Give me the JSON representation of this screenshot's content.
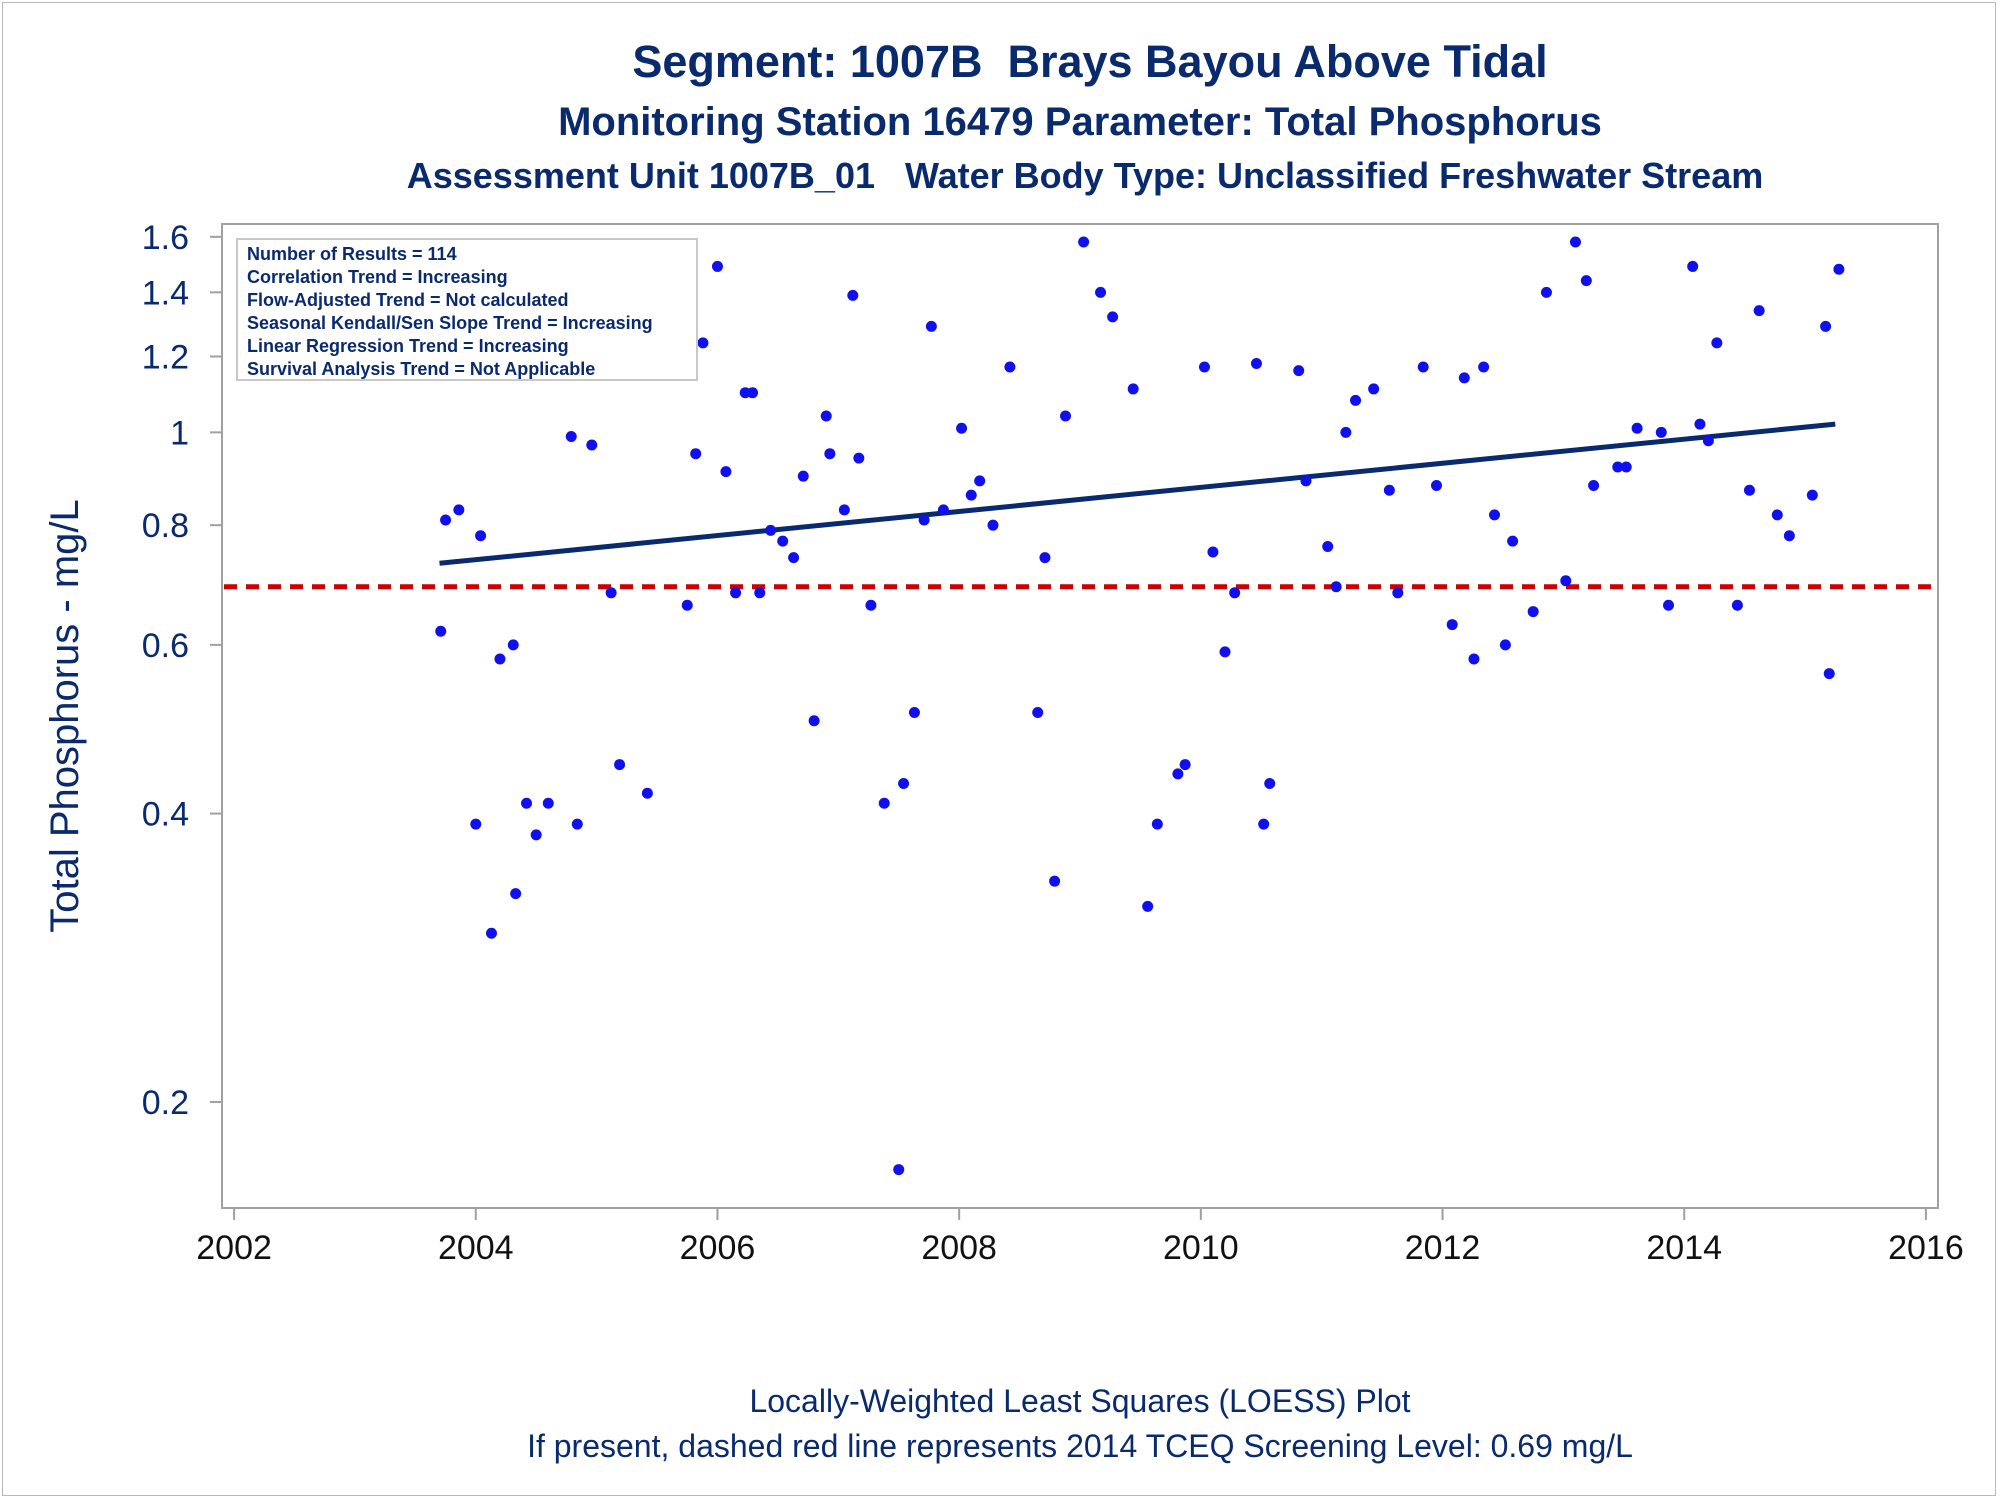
{
  "titles": {
    "line1": "Segment: 1007B  Brays Bayou Above Tidal",
    "line2": "Monitoring Station 16479 Parameter: Total Phosphorus",
    "line3": "Assessment Unit 1007B_01   Water Body Type: Unclassified Freshwater Stream"
  },
  "footer": {
    "line1": "Locally-Weighted Least Squares (LOESS) Plot",
    "line2": "If present, dashed red line represents 2014 TCEQ Screening Level: 0.69 mg/L"
  },
  "stats_box": [
    "Number of Results = 114",
    "Correlation Trend = Increasing",
    "Flow-Adjusted Trend = Not calculated",
    "Seasonal Kendall/Sen Slope Trend = Increasing",
    "Linear Regression Trend = Increasing",
    "Survival Analysis Trend = Not Applicable"
  ],
  "chart_data": {
    "type": "scatter",
    "title": "Segment: 1007B  Brays Bayou Above Tidal",
    "xlabel": "",
    "ylabel": "Total Phosphorus - mg/L",
    "y_scale": "log",
    "xlim": [
      2001.9,
      2016.1
    ],
    "ylim": [
      0.155,
      1.65
    ],
    "xticks": [
      2002,
      2004,
      2006,
      2008,
      2010,
      2012,
      2014,
      2016
    ],
    "yticks": [
      0.2,
      0.4,
      0.6,
      0.8,
      1,
      1.2,
      1.4,
      1.6
    ],
    "ytick_labels": [
      "0.2",
      "0.4",
      "0.6",
      "0.8",
      "1",
      "1.2",
      "1.4",
      "1.6"
    ],
    "grid": false,
    "colors": {
      "points": "#1010ee",
      "trend": "#0a2a6e",
      "screening": "#cc0000",
      "text": "#0a2a6e",
      "axis": "#a0a0a0"
    },
    "screening_level": 0.69,
    "trend_line": {
      "x": [
        2003.7,
        2015.25
      ],
      "y": [
        0.73,
        1.02
      ]
    },
    "points": [
      [
        2003.71,
        0.62
      ],
      [
        2003.75,
        0.81
      ],
      [
        2003.86,
        0.83
      ],
      [
        2004.0,
        0.39
      ],
      [
        2004.04,
        0.78
      ],
      [
        2004.13,
        0.3
      ],
      [
        2004.2,
        0.58
      ],
      [
        2004.31,
        0.6
      ],
      [
        2004.33,
        0.33
      ],
      [
        2004.42,
        0.41
      ],
      [
        2004.5,
        0.38
      ],
      [
        2004.6,
        0.41
      ],
      [
        2004.71,
        1.57
      ],
      [
        2004.79,
        0.99
      ],
      [
        2004.84,
        0.39
      ],
      [
        2004.96,
        0.97
      ],
      [
        2005.06,
        1.29
      ],
      [
        2005.12,
        0.68
      ],
      [
        2005.19,
        0.45
      ],
      [
        2005.3,
        1.29
      ],
      [
        2005.42,
        0.42
      ],
      [
        2005.75,
        0.66
      ],
      [
        2005.82,
        0.95
      ],
      [
        2005.88,
        1.24
      ],
      [
        2006.0,
        1.49
      ],
      [
        2006.07,
        0.91
      ],
      [
        2006.15,
        0.68
      ],
      [
        2006.23,
        1.1
      ],
      [
        2006.29,
        1.1
      ],
      [
        2006.35,
        0.68
      ],
      [
        2006.44,
        0.79
      ],
      [
        2006.54,
        0.77
      ],
      [
        2006.63,
        0.74
      ],
      [
        2006.71,
        0.9
      ],
      [
        2006.8,
        0.5
      ],
      [
        2006.9,
        1.04
      ],
      [
        2006.93,
        0.95
      ],
      [
        2007.05,
        0.83
      ],
      [
        2007.12,
        1.39
      ],
      [
        2007.17,
        0.94
      ],
      [
        2007.27,
        0.66
      ],
      [
        2007.38,
        0.41
      ],
      [
        2007.5,
        0.17
      ],
      [
        2007.54,
        0.43
      ],
      [
        2007.63,
        0.51
      ],
      [
        2007.71,
        0.81
      ],
      [
        2007.77,
        1.29
      ],
      [
        2007.87,
        0.83
      ],
      [
        2008.02,
        1.01
      ],
      [
        2008.1,
        0.86
      ],
      [
        2008.17,
        0.89
      ],
      [
        2008.28,
        0.8
      ],
      [
        2008.42,
        1.17
      ],
      [
        2008.65,
        0.51
      ],
      [
        2008.71,
        0.74
      ],
      [
        2008.79,
        0.34
      ],
      [
        2008.88,
        1.04
      ],
      [
        2009.03,
        1.58
      ],
      [
        2009.17,
        1.4
      ],
      [
        2009.27,
        1.32
      ],
      [
        2009.44,
        1.11
      ],
      [
        2009.56,
        0.32
      ],
      [
        2009.64,
        0.39
      ],
      [
        2009.81,
        0.44
      ],
      [
        2009.87,
        0.45
      ],
      [
        2010.03,
        1.17
      ],
      [
        2010.1,
        0.75
      ],
      [
        2010.2,
        0.59
      ],
      [
        2010.28,
        0.68
      ],
      [
        2010.46,
        1.18
      ],
      [
        2010.52,
        0.39
      ],
      [
        2010.57,
        0.43
      ],
      [
        2010.81,
        1.16
      ],
      [
        2010.87,
        0.89
      ],
      [
        2011.05,
        0.76
      ],
      [
        2011.12,
        0.69
      ],
      [
        2011.2,
        1.0
      ],
      [
        2011.28,
        1.08
      ],
      [
        2011.43,
        1.11
      ],
      [
        2011.56,
        0.87
      ],
      [
        2011.63,
        0.68
      ],
      [
        2011.84,
        1.17
      ],
      [
        2011.95,
        0.88
      ],
      [
        2012.08,
        0.63
      ],
      [
        2012.18,
        1.14
      ],
      [
        2012.26,
        0.58
      ],
      [
        2012.34,
        1.17
      ],
      [
        2012.43,
        0.82
      ],
      [
        2012.52,
        0.6
      ],
      [
        2012.58,
        0.77
      ],
      [
        2012.75,
        0.65
      ],
      [
        2012.86,
        1.4
      ],
      [
        2013.02,
        0.7
      ],
      [
        2013.1,
        1.58
      ],
      [
        2013.19,
        1.44
      ],
      [
        2013.25,
        0.88
      ],
      [
        2013.45,
        0.92
      ],
      [
        2013.52,
        0.92
      ],
      [
        2013.61,
        1.01
      ],
      [
        2013.81,
        1.0
      ],
      [
        2013.87,
        0.66
      ],
      [
        2014.07,
        1.49
      ],
      [
        2014.13,
        1.02
      ],
      [
        2014.2,
        0.98
      ],
      [
        2014.27,
        1.24
      ],
      [
        2014.44,
        0.66
      ],
      [
        2014.54,
        0.87
      ],
      [
        2014.62,
        1.34
      ],
      [
        2014.77,
        0.82
      ],
      [
        2014.87,
        0.78
      ],
      [
        2015.06,
        0.86
      ],
      [
        2015.17,
        1.29
      ],
      [
        2015.2,
        0.56
      ],
      [
        2015.28,
        1.48
      ]
    ]
  }
}
